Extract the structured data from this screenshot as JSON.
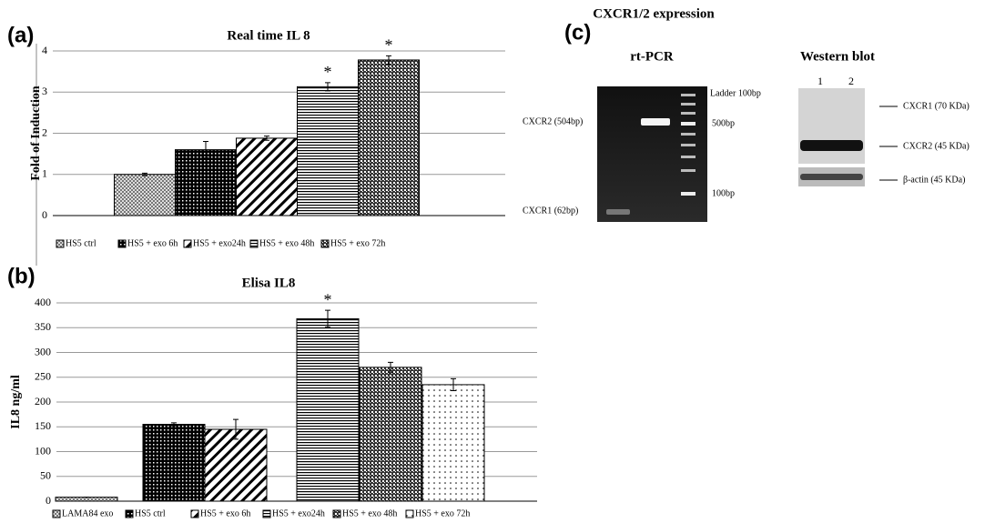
{
  "chart_data": [
    {
      "type": "bar",
      "panel_label": "(a)",
      "title": "Real time IL 8",
      "y_label": "Fold of Induction",
      "categories": [
        "HS5 ctrl",
        "HS5 + exo 6h",
        "HS5 + exo24h",
        "HS5 + exo 48h",
        "HS5 + exo 72h"
      ],
      "values": [
        1.0,
        1.6,
        1.88,
        3.13,
        3.78
      ],
      "errors": [
        0.03,
        0.2,
        0.05,
        0.1,
        0.1
      ],
      "markers": [
        null,
        null,
        null,
        "*",
        "*"
      ],
      "ylim": [
        0,
        4
      ],
      "yticks": [
        0,
        1,
        2,
        3,
        4
      ],
      "grid": true
    },
    {
      "type": "bar",
      "panel_label": "(b)",
      "title": "Elisa IL8",
      "y_label": "IL8 ng/ml",
      "categories": [
        "LAMA84 exo",
        "HS5 ctrl",
        "HS5 + exo 6h",
        "HS5 + exo24h",
        "HS5 + exo 48h",
        "HS5 + exo 72h"
      ],
      "values": [
        8,
        155,
        145,
        368,
        270,
        235
      ],
      "errors": [
        0,
        3,
        20,
        17,
        10,
        12
      ],
      "markers": [
        null,
        null,
        null,
        "*",
        null,
        null
      ],
      "ylim": [
        0,
        400
      ],
      "yticks": [
        0,
        50,
        100,
        150,
        200,
        250,
        300,
        350,
        400
      ],
      "grid": true
    }
  ],
  "panel_c": {
    "panel_label": "(c)",
    "title": "CXCR1/2 expression",
    "rt_pcr": {
      "title": "rt-PCR",
      "ladder": "Ladder 100bp",
      "cxcr2": "CXCR2 (504bp)",
      "cxcr1": "CXCR1 (62bp)",
      "bp500": "500bp",
      "bp100": "100bp"
    },
    "western": {
      "title": "Western blot",
      "lane1": "1",
      "lane2": "2",
      "cxcr1": "CXCR1 (70 KDa)",
      "cxcr2": "CXCR2 (45 KDa)",
      "actin": "β-actin  (45 KDa)"
    }
  }
}
